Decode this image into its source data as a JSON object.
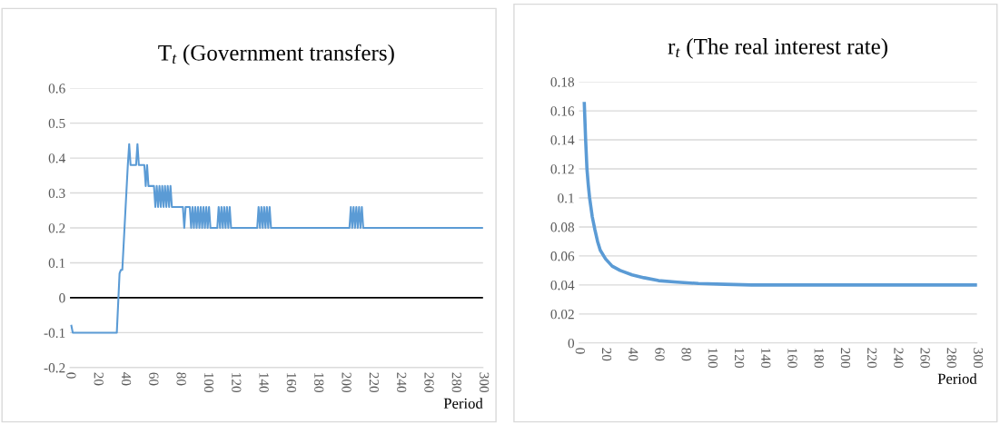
{
  "chart_data": [
    {
      "type": "line",
      "title": "T$_{t}$ (Government transfers)",
      "xlabel": "Period",
      "xlim": [
        0,
        300
      ],
      "xticks": [
        0,
        20,
        40,
        60,
        80,
        100,
        120,
        140,
        160,
        180,
        200,
        220,
        240,
        260,
        280,
        300
      ],
      "ylim": [
        -0.2,
        0.6
      ],
      "yticks": [
        -0.2,
        -0.1,
        0,
        0.1,
        0.2,
        0.3,
        0.4,
        0.5,
        0.6
      ],
      "grid": "y",
      "ref_lines": [
        {
          "axis": "y",
          "value": 0,
          "color": "#000000"
        }
      ],
      "series": [
        {
          "color": "#5b9bd5",
          "x": [
            1,
            2,
            34,
            36,
            37,
            38,
            42,
            43,
            44,
            45,
            48,
            49,
            50,
            54,
            55,
            56,
            57,
            61,
            62,
            63,
            64,
            65,
            66,
            67,
            68,
            69,
            70,
            71,
            72,
            73,
            74,
            82,
            83,
            84,
            87,
            88,
            89,
            90,
            91,
            92,
            93,
            94,
            95,
            96,
            97,
            98,
            99,
            100,
            101,
            102,
            103,
            107,
            108,
            109,
            110,
            111,
            112,
            113,
            114,
            115,
            116,
            117,
            118,
            136,
            137,
            138,
            139,
            140,
            141,
            142,
            143,
            144,
            145,
            146,
            147,
            203,
            204,
            205,
            206,
            207,
            208,
            209,
            210,
            211,
            212,
            213,
            300
          ],
          "values": [
            -0.08,
            -0.1,
            -0.1,
            0.07,
            0.08,
            0.08,
            0.38,
            0.44,
            0.38,
            0.38,
            0.38,
            0.44,
            0.38,
            0.38,
            0.32,
            0.38,
            0.32,
            0.32,
            0.26,
            0.32,
            0.26,
            0.32,
            0.26,
            0.32,
            0.26,
            0.32,
            0.26,
            0.32,
            0.26,
            0.32,
            0.26,
            0.26,
            0.2,
            0.26,
            0.26,
            0.2,
            0.26,
            0.2,
            0.26,
            0.2,
            0.26,
            0.2,
            0.26,
            0.2,
            0.26,
            0.2,
            0.26,
            0.2,
            0.26,
            0.2,
            0.2,
            0.2,
            0.26,
            0.2,
            0.26,
            0.2,
            0.26,
            0.2,
            0.26,
            0.2,
            0.26,
            0.2,
            0.2,
            0.2,
            0.26,
            0.2,
            0.26,
            0.2,
            0.26,
            0.2,
            0.26,
            0.2,
            0.26,
            0.2,
            0.2,
            0.2,
            0.26,
            0.2,
            0.26,
            0.2,
            0.26,
            0.2,
            0.26,
            0.2,
            0.26,
            0.2,
            0.2
          ]
        }
      ]
    },
    {
      "type": "line",
      "title": "r$_{t}$ (The real interest rate)",
      "xlabel": "Period",
      "xlim": [
        0,
        300
      ],
      "xticks": [
        0,
        20,
        40,
        60,
        80,
        100,
        120,
        140,
        160,
        180,
        200,
        220,
        240,
        260,
        280,
        300
      ],
      "ylim": [
        0,
        0.18
      ],
      "yticks": [
        0,
        0.02,
        0.04,
        0.06,
        0.08,
        0.1,
        0.12,
        0.14,
        0.16,
        0.18
      ],
      "grid": "y",
      "series": [
        {
          "color": "#5b9bd5",
          "x": [
            4,
            5,
            6,
            7,
            8,
            10,
            12,
            14,
            16,
            20,
            25,
            31,
            40,
            49,
            60,
            74,
            90,
            110,
            130,
            160,
            200,
            250,
            300
          ],
          "values": [
            0.165,
            0.14,
            0.12,
            0.109,
            0.1,
            0.087,
            0.078,
            0.07,
            0.064,
            0.058,
            0.053,
            0.05,
            0.047,
            0.045,
            0.043,
            0.042,
            0.041,
            0.0405,
            0.04,
            0.04,
            0.04,
            0.04,
            0.04
          ]
        }
      ]
    }
  ]
}
